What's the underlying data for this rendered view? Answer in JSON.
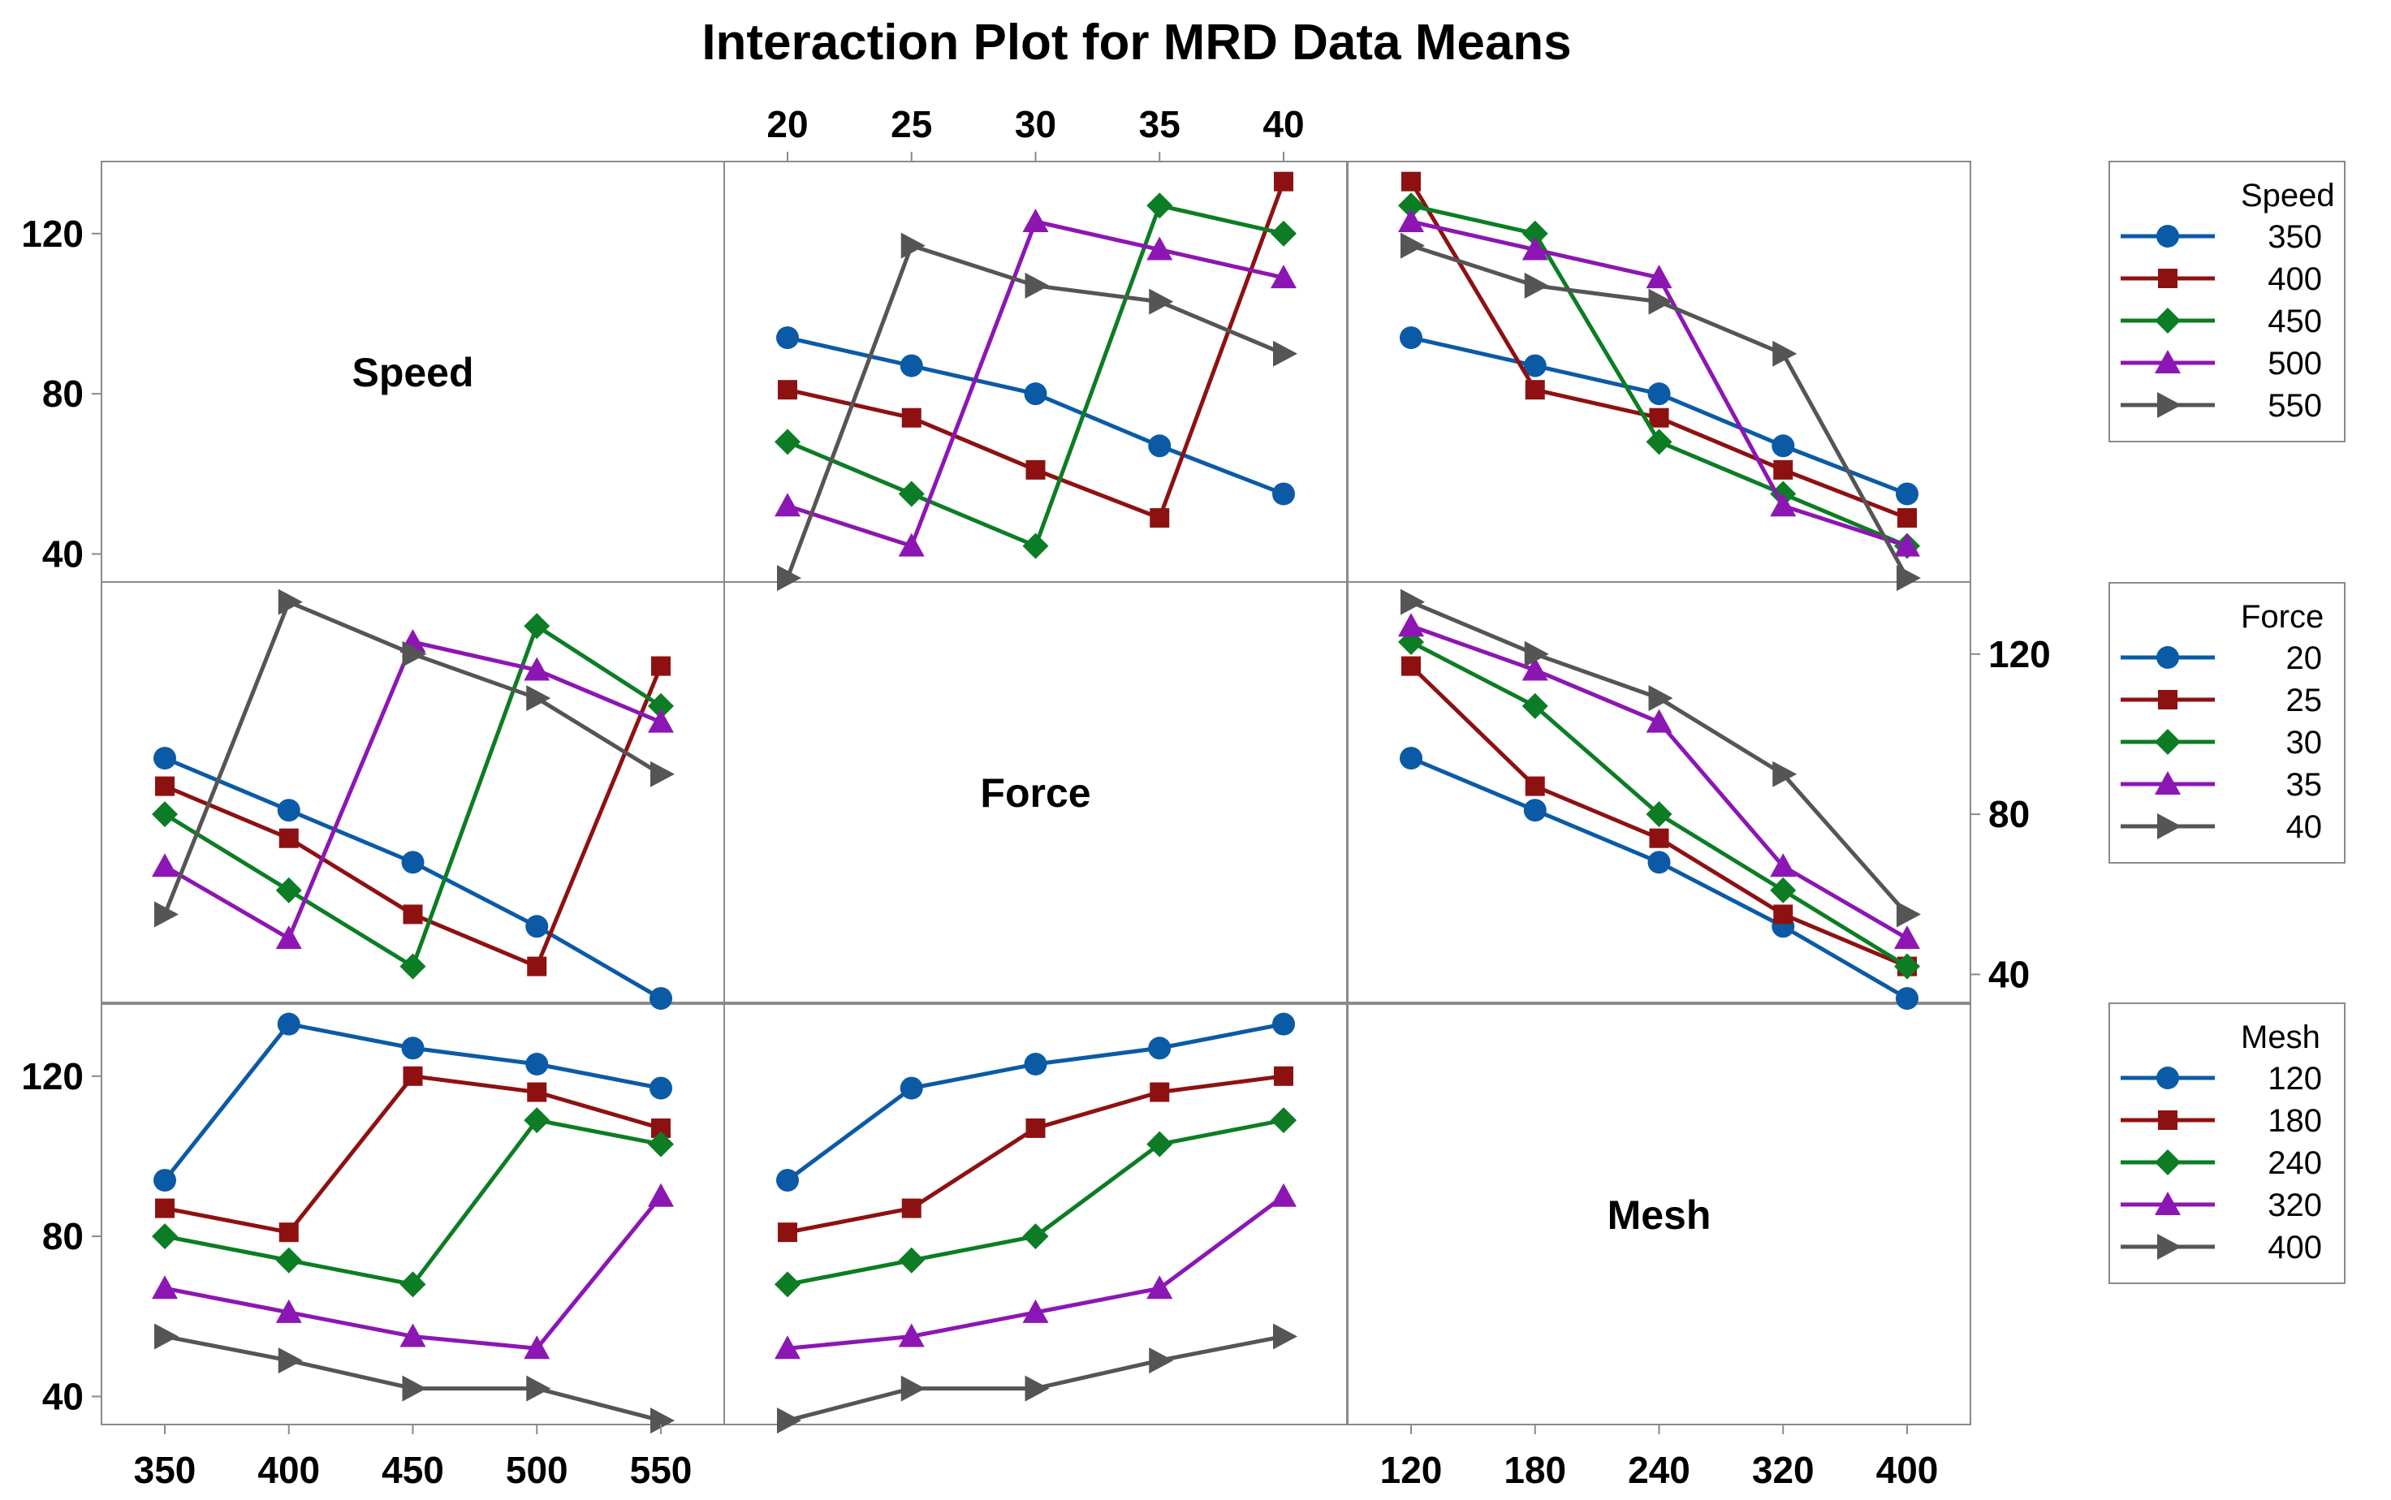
{
  "chart_data": {
    "type": "line",
    "title": "Interaction Plot for MRD Data Means",
    "factors": [
      {
        "name": "Speed",
        "levels": [
          "350",
          "400",
          "450",
          "500",
          "550"
        ]
      },
      {
        "name": "Force",
        "levels": [
          "20",
          "25",
          "30",
          "35",
          "40"
        ]
      },
      {
        "name": "Mesh",
        "levels": [
          "120",
          "180",
          "240",
          "320",
          "400"
        ]
      }
    ],
    "yticks": [
      40,
      80,
      120
    ],
    "ylim": [
      33,
      138
    ],
    "colors": [
      "#0b5aa6",
      "#8e1111",
      "#0c7d24",
      "#8c16b3",
      "#555555"
    ],
    "markers": [
      "circle",
      "square",
      "diamond",
      "triangle-up",
      "triangle-right"
    ],
    "panels": [
      {
        "row": 0,
        "col": 1,
        "x_factor": "Force",
        "trace_factor": "Speed",
        "series": [
          {
            "name": "350",
            "values": [
              94,
              87,
              80,
              67,
              55
            ]
          },
          {
            "name": "400",
            "values": [
              81,
              74,
              61,
              49,
              133
            ]
          },
          {
            "name": "450",
            "values": [
              68,
              55,
              42,
              127,
              120
            ]
          },
          {
            "name": "500",
            "values": [
              52,
              42,
              123,
              116,
              109
            ]
          },
          {
            "name": "550",
            "values": [
              34,
              117,
              107,
              103,
              90
            ]
          }
        ]
      },
      {
        "row": 0,
        "col": 2,
        "x_factor": "Mesh",
        "trace_factor": "Speed",
        "series": [
          {
            "name": "350",
            "values": [
              94,
              87,
              80,
              67,
              55
            ]
          },
          {
            "name": "400",
            "values": [
              133,
              81,
              74,
              61,
              49
            ]
          },
          {
            "name": "450",
            "values": [
              127,
              120,
              68,
              55,
              42
            ]
          },
          {
            "name": "500",
            "values": [
              123,
              116,
              109,
              52,
              42
            ]
          },
          {
            "name": "550",
            "values": [
              117,
              107,
              103,
              90,
              34
            ]
          }
        ]
      },
      {
        "row": 1,
        "col": 0,
        "x_factor": "Speed",
        "trace_factor": "Force",
        "series": [
          {
            "name": "20",
            "values": [
              94,
              81,
              68,
              52,
              34
            ]
          },
          {
            "name": "25",
            "values": [
              87,
              74,
              55,
              42,
              117
            ]
          },
          {
            "name": "30",
            "values": [
              80,
              61,
              42,
              127,
              107
            ]
          },
          {
            "name": "35",
            "values": [
              67,
              49,
              123,
              116,
              103
            ]
          },
          {
            "name": "40",
            "values": [
              55,
              133,
              120,
              109,
              90
            ]
          }
        ]
      },
      {
        "row": 1,
        "col": 2,
        "x_factor": "Mesh",
        "trace_factor": "Force",
        "series": [
          {
            "name": "20",
            "values": [
              94,
              81,
              68,
              52,
              34
            ]
          },
          {
            "name": "25",
            "values": [
              117,
              87,
              74,
              55,
              42
            ]
          },
          {
            "name": "30",
            "values": [
              123,
              107,
              80,
              61,
              42
            ]
          },
          {
            "name": "35",
            "values": [
              127,
              116,
              103,
              67,
              49
            ]
          },
          {
            "name": "40",
            "values": [
              133,
              120,
              109,
              90,
              55
            ]
          }
        ]
      },
      {
        "row": 2,
        "col": 0,
        "x_factor": "Speed",
        "trace_factor": "Mesh",
        "series": [
          {
            "name": "120",
            "values": [
              94,
              133,
              127,
              123,
              117
            ]
          },
          {
            "name": "180",
            "values": [
              87,
              81,
              120,
              116,
              107
            ]
          },
          {
            "name": "240",
            "values": [
              80,
              74,
              68,
              109,
              103
            ]
          },
          {
            "name": "320",
            "values": [
              67,
              61,
              55,
              52,
              90
            ]
          },
          {
            "name": "400",
            "values": [
              55,
              49,
              42,
              42,
              34
            ]
          }
        ]
      },
      {
        "row": 2,
        "col": 1,
        "x_factor": "Force",
        "trace_factor": "Mesh",
        "series": [
          {
            "name": "120",
            "values": [
              94,
              117,
              123,
              127,
              133
            ]
          },
          {
            "name": "180",
            "values": [
              81,
              87,
              107,
              116,
              120
            ]
          },
          {
            "name": "240",
            "values": [
              68,
              74,
              80,
              103,
              109
            ]
          },
          {
            "name": "320",
            "values": [
              52,
              55,
              61,
              67,
              90
            ]
          },
          {
            "name": "400",
            "values": [
              34,
              42,
              42,
              49,
              55
            ]
          }
        ]
      }
    ],
    "legends": [
      {
        "title": "Speed",
        "items": [
          "350",
          "400",
          "450",
          "500",
          "550"
        ]
      },
      {
        "title": "Force",
        "items": [
          "20",
          "25",
          "30",
          "35",
          "40"
        ]
      },
      {
        "title": "Mesh",
        "items": [
          "120",
          "180",
          "240",
          "320",
          "400"
        ]
      }
    ]
  }
}
